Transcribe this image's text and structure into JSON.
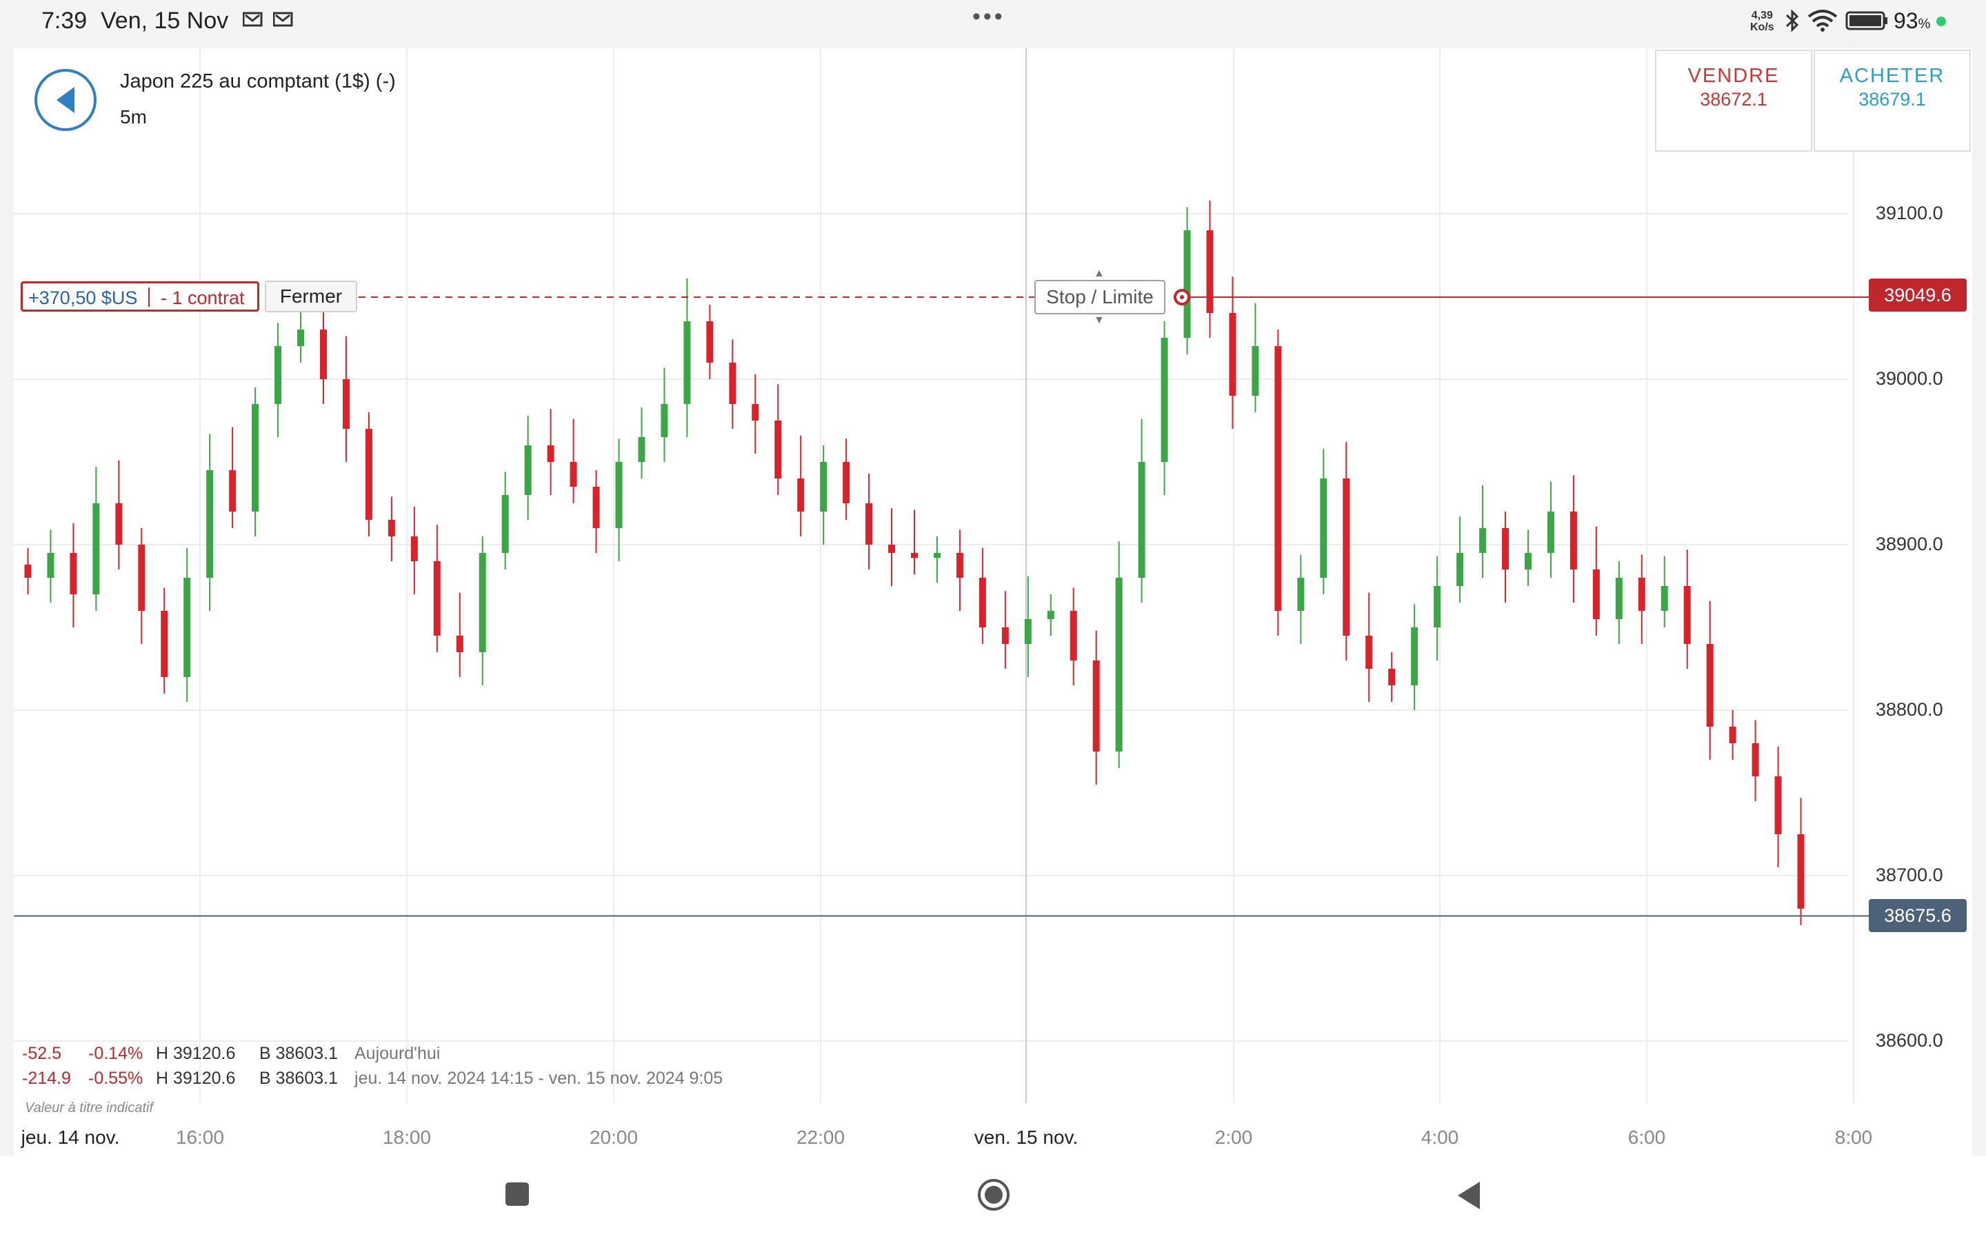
{
  "status_bar": {
    "time": "7:39",
    "date": "Ven, 15 Nov",
    "speed_value": "4,39",
    "speed_unit": "Ko/s",
    "battery": "93",
    "battery_unit": "%",
    "icons": [
      "notification-icon",
      "notification-icon",
      "more-dots-icon",
      "bluetooth-icon",
      "wifi-icon",
      "battery-icon"
    ]
  },
  "header": {
    "instrument": "Japon 225 au comptant (1$) (-)",
    "timeframe": "5m"
  },
  "trade": {
    "sell_label": "VENDRE",
    "sell_price": "38672.1",
    "buy_label": "ACHETER",
    "buy_price": "38679.1"
  },
  "position": {
    "pnl": "+370,50 $US",
    "quantity": "- 1 contrat",
    "close_label": "Fermer",
    "stop_limit_label": "Stop / Limite",
    "entry_price": 39049.6,
    "entry_price_label": "39049.6"
  },
  "current_price": 38675.6,
  "current_price_label": "38675.6",
  "colors": {
    "up": "#3aa646",
    "down": "#d9232a",
    "position": "#c0272d",
    "current": "#4d6279"
  },
  "stats": {
    "row1": {
      "change": "-52.5",
      "change_pct": "-0.14%",
      "high": "H 39120.6",
      "low": "B 38603.1",
      "period": "Aujourd'hui"
    },
    "row2": {
      "change": "-214.9",
      "change_pct": "-0.55%",
      "high": "H 39120.6",
      "low": "B 38603.1",
      "period": "jeu. 14 nov. 2024 14:15 - ven. 15 nov. 2024 9:05"
    },
    "note": "Valeur à titre indicatif"
  },
  "chart_data": {
    "type": "candlestick",
    "y_axis_ticks": [
      "39100.0",
      "39000.0",
      "38900.0",
      "38800.0",
      "38700.0",
      "38600.0"
    ],
    "ylim": [
      38580,
      39200
    ],
    "x_axis_labels": [
      "jeu. 14 nov.",
      "16:00",
      "18:00",
      "20:00",
      "22:00",
      "ven. 15 nov.",
      "2:00",
      "4:00",
      "6:00",
      "8:00"
    ],
    "grid": true,
    "interval": "5m",
    "closes_approx": [
      38880,
      38895,
      38870,
      38925,
      38900,
      38860,
      38820,
      38880,
      38945,
      38920,
      38985,
      39020,
      39030,
      39000,
      38970,
      38915,
      38905,
      38890,
      38845,
      38835,
      38895,
      38930,
      38960,
      38950,
      38935,
      38910,
      38950,
      38965,
      38985,
      39035,
      39010,
      38985,
      38975,
      38940,
      38920,
      38950,
      38925,
      38900,
      38895,
      38892,
      38895,
      38880,
      38850,
      38840,
      38855,
      38860,
      38830,
      38775,
      38880,
      38950,
      39025,
      39090,
      39040,
      38990,
      39020,
      38860,
      38880,
      38940,
      38845,
      38825,
      38815,
      38850,
      38875,
      38895,
      38910,
      38885,
      38895,
      38920,
      38885,
      38855,
      38880,
      38860,
      38875,
      38840,
      38790,
      38780,
      38760,
      38725,
      38680
    ]
  }
}
